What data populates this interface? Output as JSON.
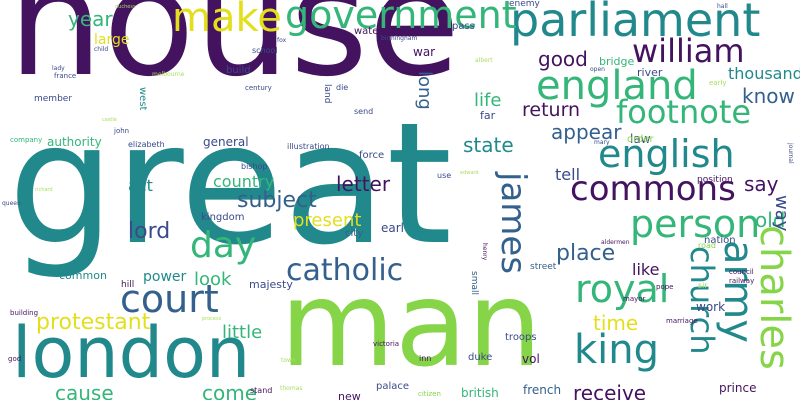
{
  "palette": {
    "purple": "#44135f",
    "indigo": "#3a4a8a",
    "blue": "#34608d",
    "teal": "#21898c",
    "green": "#34b679",
    "lime": "#86d549",
    "yellow": "#e3df1d",
    "pale": "#a9dc5e"
  },
  "words": [
    {
      "text": "house"
    },
    {
      "text": "great"
    },
    {
      "text": "man"
    },
    {
      "text": "london"
    },
    {
      "text": "parliament"
    },
    {
      "text": "government"
    },
    {
      "text": "make"
    },
    {
      "text": "england"
    },
    {
      "text": "william"
    },
    {
      "text": "footnote"
    },
    {
      "text": "english"
    },
    {
      "text": "commons"
    },
    {
      "text": "person"
    },
    {
      "text": "catholic"
    },
    {
      "text": "court"
    },
    {
      "text": "day"
    },
    {
      "text": "church"
    },
    {
      "text": "army"
    },
    {
      "text": "charles"
    },
    {
      "text": "king"
    },
    {
      "text": "royal"
    },
    {
      "text": "james"
    },
    {
      "text": "protestant"
    },
    {
      "text": "lord"
    },
    {
      "text": "subject"
    },
    {
      "text": "year"
    },
    {
      "text": "good"
    },
    {
      "text": "know"
    },
    {
      "text": "return"
    },
    {
      "text": "appear"
    },
    {
      "text": "state"
    },
    {
      "text": "long"
    },
    {
      "text": "life"
    },
    {
      "text": "letter"
    },
    {
      "text": "say"
    },
    {
      "text": "place"
    },
    {
      "text": "old"
    },
    {
      "text": "present"
    },
    {
      "text": "country"
    },
    {
      "text": "act"
    },
    {
      "text": "time"
    },
    {
      "text": "like"
    },
    {
      "text": "little"
    },
    {
      "text": "come"
    },
    {
      "text": "cause"
    },
    {
      "text": "receive"
    },
    {
      "text": "look"
    },
    {
      "text": "power"
    },
    {
      "text": "tell"
    },
    {
      "text": "thousand"
    },
    {
      "text": "way"
    },
    {
      "text": "authority"
    },
    {
      "text": "large"
    },
    {
      "text": "water"
    },
    {
      "text": "war"
    },
    {
      "text": "bridge"
    },
    {
      "text": "river"
    },
    {
      "text": "earl"
    },
    {
      "text": "general"
    },
    {
      "text": "kingdom"
    },
    {
      "text": "majesty"
    },
    {
      "text": "british"
    },
    {
      "text": "french"
    },
    {
      "text": "prince"
    },
    {
      "text": "troops"
    },
    {
      "text": "vol"
    },
    {
      "text": "duke"
    },
    {
      "text": "new"
    },
    {
      "text": "palace"
    },
    {
      "text": "common"
    },
    {
      "text": "hill"
    },
    {
      "text": "law"
    },
    {
      "text": "order"
    },
    {
      "text": "work"
    },
    {
      "text": "nation"
    },
    {
      "text": "pass"
    },
    {
      "text": "enemy"
    },
    {
      "text": "build"
    },
    {
      "text": "school"
    },
    {
      "text": "land"
    },
    {
      "text": "die"
    },
    {
      "text": "send"
    },
    {
      "text": "far"
    },
    {
      "text": "use"
    },
    {
      "text": "force"
    },
    {
      "text": "bishop"
    },
    {
      "text": "illustration"
    },
    {
      "text": "member"
    },
    {
      "text": "john"
    },
    {
      "text": "france"
    },
    {
      "text": "elizabeth"
    },
    {
      "text": "company"
    },
    {
      "text": "west"
    },
    {
      "text": "century"
    },
    {
      "text": "city"
    },
    {
      "text": "street"
    },
    {
      "text": "small"
    },
    {
      "text": "stand"
    },
    {
      "text": "inn"
    },
    {
      "text": "victoria"
    },
    {
      "text": "position"
    },
    {
      "text": "road"
    },
    {
      "text": "council"
    },
    {
      "text": "railway"
    },
    {
      "text": "pope"
    },
    {
      "text": "sir"
    },
    {
      "text": "mayor"
    },
    {
      "text": "marriage"
    },
    {
      "text": "aldermen"
    },
    {
      "text": "citizen"
    },
    {
      "text": "henry"
    },
    {
      "text": "journal"
    },
    {
      "text": "early"
    },
    {
      "text": "hall"
    },
    {
      "text": "birmingham"
    },
    {
      "text": "queen"
    },
    {
      "text": "child"
    },
    {
      "text": "god"
    },
    {
      "text": "building"
    },
    {
      "text": "open"
    },
    {
      "text": "thomas"
    },
    {
      "text": "fox"
    },
    {
      "text": "mary"
    },
    {
      "text": "lady"
    },
    {
      "text": "albert"
    },
    {
      "text": "melbourne"
    },
    {
      "text": "duchess"
    },
    {
      "text": "edward"
    },
    {
      "text": "castle"
    },
    {
      "text": "richard"
    },
    {
      "text": "town"
    },
    {
      "text": "process"
    }
  ]
}
